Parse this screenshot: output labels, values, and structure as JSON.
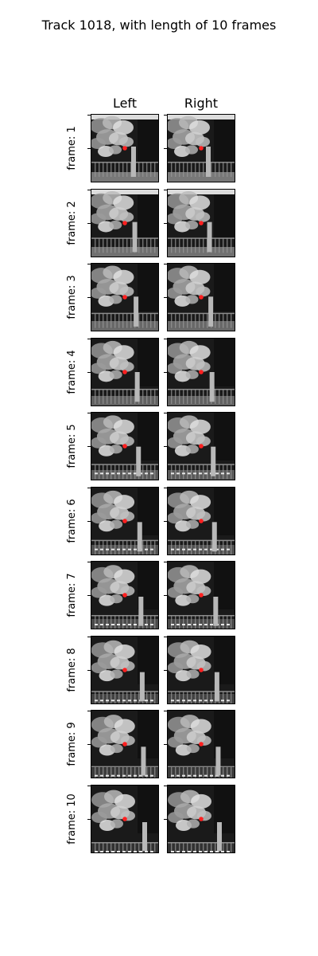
{
  "title": "Track 1018, with length of 10 frames",
  "columns": [
    "Left",
    "Right"
  ],
  "frames": [
    {
      "label": "frame: 1"
    },
    {
      "label": "frame: 2"
    },
    {
      "label": "frame: 3"
    },
    {
      "label": "frame: 4"
    },
    {
      "label": "frame: 5"
    },
    {
      "label": "frame: 6"
    },
    {
      "label": "frame: 7"
    },
    {
      "label": "frame: 8"
    },
    {
      "label": "frame: 9"
    },
    {
      "label": "frame: 10"
    }
  ],
  "image_content": "grayscale night scene with tree foliage, fence and post",
  "marker_color": "#ff2020"
}
